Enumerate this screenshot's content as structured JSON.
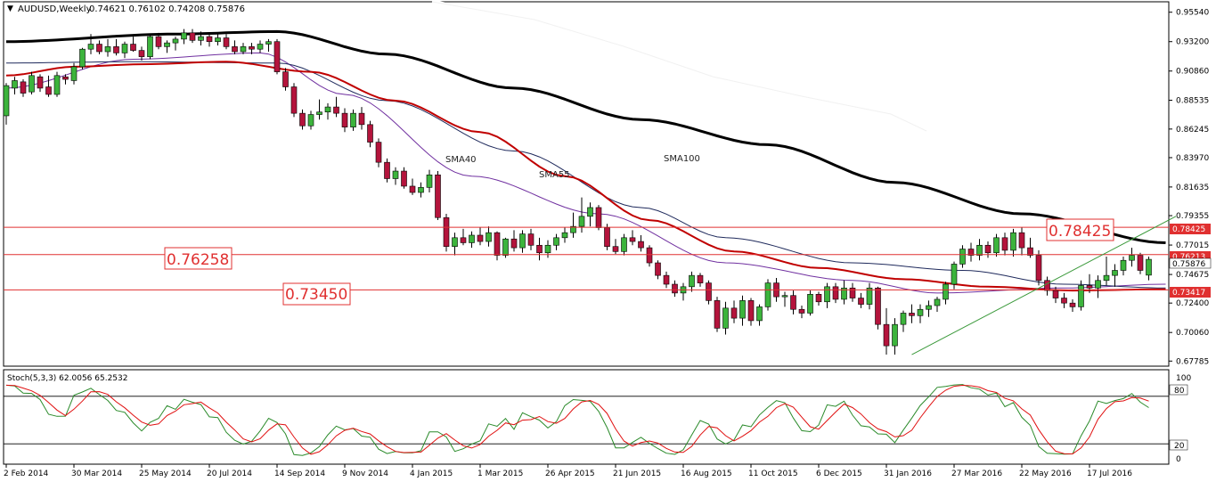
{
  "header": {
    "symbol_label": "AUDUSD,Weekly",
    "ohlc_label": "0.74621 0.76102 0.74208 0.75876"
  },
  "indicator": {
    "label": "Stoch(5,3,3) 62.0056 65.2532",
    "axis_ticks": [
      "100",
      "80",
      "20",
      "0"
    ]
  },
  "annotations": {
    "sma40": "SMA40",
    "sma55": "SMA55",
    "sma100": "SMA100",
    "level_1": "0.76258",
    "level_2": "0.73450",
    "level_3": "0.78425"
  },
  "price_axis": {
    "ticks": [
      "0.95540",
      "0.93200",
      "0.90860",
      "0.88535",
      "0.86245",
      "0.83970",
      "0.81635",
      "0.79355",
      "0.77015",
      "0.74675",
      "0.72400",
      "0.70060",
      "0.67785"
    ],
    "tag_1": "0.78425",
    "tag_2": "0.76213",
    "tag_3": "0.75876",
    "tag_4": "0.73417"
  },
  "time_axis": {
    "labels": [
      "2 Feb 2014",
      "30 Mar 2014",
      "25 May 2014",
      "20 Jul 2014",
      "14 Sep 2014",
      "9 Nov 2014",
      "4 Jan 2015",
      "1 Mar 2015",
      "26 Apr 2015",
      "21 Jun 2015",
      "16 Aug 2015",
      "11 Oct 2015",
      "6 Dec 2015",
      "31 Jan 2016",
      "27 Mar 2016",
      "22 May 2016",
      "17 Jul 2016"
    ]
  },
  "colors": {
    "background": "#ffffff",
    "bull_candle": "#3cb43c",
    "bear_candle": "#b4143c",
    "sma40": "#7030a0",
    "sma55": "#1f2a5c",
    "sma100_red": "#c00000",
    "sma_black": "#000000",
    "sma_white": "#ffffff",
    "level_line": "#e03030",
    "trendline": "#3c9a3c",
    "stoch_main": "#2a8a2a",
    "stoch_signal": "#e01010"
  },
  "chart_data": {
    "type": "candlestick",
    "title": "AUDUSD,Weekly",
    "ylim": [
      0.6738,
      0.9637
    ],
    "horizontal_levels": [
      0.78425,
      0.76258,
      0.7345
    ],
    "candles": [
      {
        "o": 0.873,
        "h": 0.899,
        "l": 0.866,
        "c": 0.897
      },
      {
        "o": 0.895,
        "h": 0.904,
        "l": 0.89,
        "c": 0.901
      },
      {
        "o": 0.9,
        "h": 0.902,
        "l": 0.888,
        "c": 0.891
      },
      {
        "o": 0.892,
        "h": 0.908,
        "l": 0.89,
        "c": 0.905
      },
      {
        "o": 0.904,
        "h": 0.906,
        "l": 0.892,
        "c": 0.895
      },
      {
        "o": 0.896,
        "h": 0.905,
        "l": 0.888,
        "c": 0.89
      },
      {
        "o": 0.89,
        "h": 0.908,
        "l": 0.888,
        "c": 0.905
      },
      {
        "o": 0.904,
        "h": 0.906,
        "l": 0.898,
        "c": 0.902
      },
      {
        "o": 0.901,
        "h": 0.915,
        "l": 0.898,
        "c": 0.912
      },
      {
        "o": 0.912,
        "h": 0.927,
        "l": 0.91,
        "c": 0.926
      },
      {
        "o": 0.926,
        "h": 0.938,
        "l": 0.922,
        "c": 0.93
      },
      {
        "o": 0.93,
        "h": 0.933,
        "l": 0.922,
        "c": 0.924
      },
      {
        "o": 0.924,
        "h": 0.934,
        "l": 0.92,
        "c": 0.928
      },
      {
        "o": 0.928,
        "h": 0.934,
        "l": 0.921,
        "c": 0.923
      },
      {
        "o": 0.923,
        "h": 0.932,
        "l": 0.919,
        "c": 0.93
      },
      {
        "o": 0.93,
        "h": 0.936,
        "l": 0.924,
        "c": 0.925
      },
      {
        "o": 0.925,
        "h": 0.928,
        "l": 0.917,
        "c": 0.92
      },
      {
        "o": 0.92,
        "h": 0.938,
        "l": 0.918,
        "c": 0.936
      },
      {
        "o": 0.936,
        "h": 0.939,
        "l": 0.926,
        "c": 0.928
      },
      {
        "o": 0.928,
        "h": 0.933,
        "l": 0.923,
        "c": 0.931
      },
      {
        "o": 0.931,
        "h": 0.936,
        "l": 0.925,
        "c": 0.934
      },
      {
        "o": 0.934,
        "h": 0.942,
        "l": 0.93,
        "c": 0.939
      },
      {
        "o": 0.939,
        "h": 0.942,
        "l": 0.931,
        "c": 0.933
      },
      {
        "o": 0.933,
        "h": 0.94,
        "l": 0.929,
        "c": 0.936
      },
      {
        "o": 0.936,
        "h": 0.938,
        "l": 0.928,
        "c": 0.932
      },
      {
        "o": 0.932,
        "h": 0.939,
        "l": 0.929,
        "c": 0.935
      },
      {
        "o": 0.935,
        "h": 0.938,
        "l": 0.926,
        "c": 0.928
      },
      {
        "o": 0.928,
        "h": 0.933,
        "l": 0.922,
        "c": 0.924
      },
      {
        "o": 0.924,
        "h": 0.931,
        "l": 0.922,
        "c": 0.928
      },
      {
        "o": 0.928,
        "h": 0.931,
        "l": 0.922,
        "c": 0.926
      },
      {
        "o": 0.926,
        "h": 0.933,
        "l": 0.923,
        "c": 0.93
      },
      {
        "o": 0.93,
        "h": 0.934,
        "l": 0.924,
        "c": 0.932
      },
      {
        "o": 0.932,
        "h": 0.934,
        "l": 0.906,
        "c": 0.908
      },
      {
        "o": 0.908,
        "h": 0.911,
        "l": 0.893,
        "c": 0.896
      },
      {
        "o": 0.896,
        "h": 0.899,
        "l": 0.872,
        "c": 0.875
      },
      {
        "o": 0.875,
        "h": 0.878,
        "l": 0.862,
        "c": 0.865
      },
      {
        "o": 0.865,
        "h": 0.877,
        "l": 0.862,
        "c": 0.874
      },
      {
        "o": 0.874,
        "h": 0.886,
        "l": 0.87,
        "c": 0.876
      },
      {
        "o": 0.876,
        "h": 0.883,
        "l": 0.87,
        "c": 0.88
      },
      {
        "o": 0.88,
        "h": 0.888,
        "l": 0.872,
        "c": 0.875
      },
      {
        "o": 0.875,
        "h": 0.879,
        "l": 0.86,
        "c": 0.864
      },
      {
        "o": 0.864,
        "h": 0.878,
        "l": 0.861,
        "c": 0.875
      },
      {
        "o": 0.875,
        "h": 0.88,
        "l": 0.862,
        "c": 0.866
      },
      {
        "o": 0.866,
        "h": 0.869,
        "l": 0.848,
        "c": 0.852
      },
      {
        "o": 0.852,
        "h": 0.855,
        "l": 0.832,
        "c": 0.836
      },
      {
        "o": 0.836,
        "h": 0.839,
        "l": 0.82,
        "c": 0.823
      },
      {
        "o": 0.823,
        "h": 0.832,
        "l": 0.818,
        "c": 0.829
      },
      {
        "o": 0.829,
        "h": 0.832,
        "l": 0.815,
        "c": 0.817
      },
      {
        "o": 0.817,
        "h": 0.823,
        "l": 0.81,
        "c": 0.812
      },
      {
        "o": 0.812,
        "h": 0.82,
        "l": 0.808,
        "c": 0.816
      },
      {
        "o": 0.816,
        "h": 0.83,
        "l": 0.812,
        "c": 0.826
      },
      {
        "o": 0.826,
        "h": 0.829,
        "l": 0.79,
        "c": 0.792
      },
      {
        "o": 0.792,
        "h": 0.795,
        "l": 0.765,
        "c": 0.769
      },
      {
        "o": 0.769,
        "h": 0.78,
        "l": 0.762,
        "c": 0.776
      },
      {
        "o": 0.776,
        "h": 0.783,
        "l": 0.77,
        "c": 0.772
      },
      {
        "o": 0.772,
        "h": 0.781,
        "l": 0.768,
        "c": 0.778
      },
      {
        "o": 0.778,
        "h": 0.784,
        "l": 0.77,
        "c": 0.773
      },
      {
        "o": 0.773,
        "h": 0.785,
        "l": 0.769,
        "c": 0.78
      },
      {
        "o": 0.78,
        "h": 0.781,
        "l": 0.758,
        "c": 0.762
      },
      {
        "o": 0.762,
        "h": 0.776,
        "l": 0.76,
        "c": 0.775
      },
      {
        "o": 0.775,
        "h": 0.782,
        "l": 0.765,
        "c": 0.768
      },
      {
        "o": 0.768,
        "h": 0.782,
        "l": 0.764,
        "c": 0.779
      },
      {
        "o": 0.779,
        "h": 0.783,
        "l": 0.766,
        "c": 0.77
      },
      {
        "o": 0.77,
        "h": 0.776,
        "l": 0.758,
        "c": 0.764
      },
      {
        "o": 0.764,
        "h": 0.774,
        "l": 0.76,
        "c": 0.77
      },
      {
        "o": 0.77,
        "h": 0.779,
        "l": 0.766,
        "c": 0.776
      },
      {
        "o": 0.776,
        "h": 0.784,
        "l": 0.772,
        "c": 0.78
      },
      {
        "o": 0.78,
        "h": 0.796,
        "l": 0.776,
        "c": 0.785
      },
      {
        "o": 0.785,
        "h": 0.808,
        "l": 0.78,
        "c": 0.793
      },
      {
        "o": 0.793,
        "h": 0.804,
        "l": 0.785,
        "c": 0.8
      },
      {
        "o": 0.8,
        "h": 0.802,
        "l": 0.782,
        "c": 0.784
      },
      {
        "o": 0.784,
        "h": 0.787,
        "l": 0.766,
        "c": 0.769
      },
      {
        "o": 0.769,
        "h": 0.775,
        "l": 0.763,
        "c": 0.765
      },
      {
        "o": 0.765,
        "h": 0.779,
        "l": 0.762,
        "c": 0.776
      },
      {
        "o": 0.776,
        "h": 0.782,
        "l": 0.77,
        "c": 0.773
      },
      {
        "o": 0.773,
        "h": 0.778,
        "l": 0.765,
        "c": 0.768
      },
      {
        "o": 0.768,
        "h": 0.77,
        "l": 0.753,
        "c": 0.756
      },
      {
        "o": 0.756,
        "h": 0.758,
        "l": 0.743,
        "c": 0.746
      },
      {
        "o": 0.746,
        "h": 0.749,
        "l": 0.736,
        "c": 0.739
      },
      {
        "o": 0.739,
        "h": 0.742,
        "l": 0.729,
        "c": 0.732
      },
      {
        "o": 0.732,
        "h": 0.74,
        "l": 0.726,
        "c": 0.737
      },
      {
        "o": 0.737,
        "h": 0.749,
        "l": 0.733,
        "c": 0.746
      },
      {
        "o": 0.746,
        "h": 0.748,
        "l": 0.737,
        "c": 0.74
      },
      {
        "o": 0.74,
        "h": 0.742,
        "l": 0.723,
        "c": 0.726
      },
      {
        "o": 0.726,
        "h": 0.729,
        "l": 0.701,
        "c": 0.704
      },
      {
        "o": 0.704,
        "h": 0.725,
        "l": 0.699,
        "c": 0.72
      },
      {
        "o": 0.72,
        "h": 0.726,
        "l": 0.708,
        "c": 0.712
      },
      {
        "o": 0.712,
        "h": 0.73,
        "l": 0.706,
        "c": 0.726
      },
      {
        "o": 0.726,
        "h": 0.728,
        "l": 0.706,
        "c": 0.71
      },
      {
        "o": 0.71,
        "h": 0.723,
        "l": 0.706,
        "c": 0.721
      },
      {
        "o": 0.721,
        "h": 0.743,
        "l": 0.718,
        "c": 0.74
      },
      {
        "o": 0.74,
        "h": 0.744,
        "l": 0.725,
        "c": 0.729
      },
      {
        "o": 0.729,
        "h": 0.733,
        "l": 0.721,
        "c": 0.73
      },
      {
        "o": 0.73,
        "h": 0.734,
        "l": 0.715,
        "c": 0.719
      },
      {
        "o": 0.719,
        "h": 0.722,
        "l": 0.712,
        "c": 0.716
      },
      {
        "o": 0.716,
        "h": 0.734,
        "l": 0.714,
        "c": 0.731
      },
      {
        "o": 0.731,
        "h": 0.733,
        "l": 0.722,
        "c": 0.725
      },
      {
        "o": 0.725,
        "h": 0.74,
        "l": 0.72,
        "c": 0.737
      },
      {
        "o": 0.737,
        "h": 0.74,
        "l": 0.724,
        "c": 0.727
      },
      {
        "o": 0.727,
        "h": 0.742,
        "l": 0.723,
        "c": 0.736
      },
      {
        "o": 0.736,
        "h": 0.74,
        "l": 0.725,
        "c": 0.728
      },
      {
        "o": 0.728,
        "h": 0.732,
        "l": 0.72,
        "c": 0.723
      },
      {
        "o": 0.723,
        "h": 0.74,
        "l": 0.719,
        "c": 0.736
      },
      {
        "o": 0.736,
        "h": 0.737,
        "l": 0.703,
        "c": 0.707
      },
      {
        "o": 0.707,
        "h": 0.72,
        "l": 0.683,
        "c": 0.69
      },
      {
        "o": 0.69,
        "h": 0.712,
        "l": 0.683,
        "c": 0.707
      },
      {
        "o": 0.707,
        "h": 0.718,
        "l": 0.701,
        "c": 0.716
      },
      {
        "o": 0.716,
        "h": 0.723,
        "l": 0.708,
        "c": 0.714
      },
      {
        "o": 0.714,
        "h": 0.723,
        "l": 0.708,
        "c": 0.719
      },
      {
        "o": 0.719,
        "h": 0.726,
        "l": 0.713,
        "c": 0.722
      },
      {
        "o": 0.722,
        "h": 0.729,
        "l": 0.717,
        "c": 0.727
      },
      {
        "o": 0.727,
        "h": 0.741,
        "l": 0.723,
        "c": 0.739
      },
      {
        "o": 0.739,
        "h": 0.757,
        "l": 0.735,
        "c": 0.755
      },
      {
        "o": 0.755,
        "h": 0.77,
        "l": 0.752,
        "c": 0.767
      },
      {
        "o": 0.767,
        "h": 0.772,
        "l": 0.757,
        "c": 0.762
      },
      {
        "o": 0.762,
        "h": 0.775,
        "l": 0.758,
        "c": 0.77
      },
      {
        "o": 0.77,
        "h": 0.773,
        "l": 0.76,
        "c": 0.764
      },
      {
        "o": 0.764,
        "h": 0.779,
        "l": 0.761,
        "c": 0.776
      },
      {
        "o": 0.776,
        "h": 0.78,
        "l": 0.762,
        "c": 0.766
      },
      {
        "o": 0.766,
        "h": 0.783,
        "l": 0.761,
        "c": 0.78
      },
      {
        "o": 0.78,
        "h": 0.784,
        "l": 0.762,
        "c": 0.768
      },
      {
        "o": 0.768,
        "h": 0.776,
        "l": 0.76,
        "c": 0.762
      },
      {
        "o": 0.762,
        "h": 0.766,
        "l": 0.738,
        "c": 0.742
      },
      {
        "o": 0.742,
        "h": 0.745,
        "l": 0.73,
        "c": 0.734
      },
      {
        "o": 0.734,
        "h": 0.737,
        "l": 0.724,
        "c": 0.728
      },
      {
        "o": 0.728,
        "h": 0.732,
        "l": 0.72,
        "c": 0.724
      },
      {
        "o": 0.724,
        "h": 0.727,
        "l": 0.717,
        "c": 0.721
      },
      {
        "o": 0.721,
        "h": 0.742,
        "l": 0.718,
        "c": 0.738
      },
      {
        "o": 0.738,
        "h": 0.747,
        "l": 0.732,
        "c": 0.736
      },
      {
        "o": 0.736,
        "h": 0.746,
        "l": 0.728,
        "c": 0.742
      },
      {
        "o": 0.742,
        "h": 0.761,
        "l": 0.738,
        "c": 0.746
      },
      {
        "o": 0.746,
        "h": 0.755,
        "l": 0.737,
        "c": 0.75
      },
      {
        "o": 0.75,
        "h": 0.761,
        "l": 0.746,
        "c": 0.758
      },
      {
        "o": 0.758,
        "h": 0.768,
        "l": 0.753,
        "c": 0.762
      },
      {
        "o": 0.762,
        "h": 0.764,
        "l": 0.747,
        "c": 0.75
      },
      {
        "o": 0.7462,
        "h": 0.761,
        "l": 0.7421,
        "c": 0.7588
      }
    ],
    "series": [
      {
        "name": "SMA40",
        "values": [
          [
            0,
            0.895
          ],
          [
            15,
            0.918
          ],
          [
            30,
            0.923
          ],
          [
            40,
            0.89
          ],
          [
            55,
            0.825
          ],
          [
            70,
            0.795
          ],
          [
            85,
            0.756
          ],
          [
            100,
            0.742
          ],
          [
            110,
            0.732
          ],
          [
            125,
            0.736
          ],
          [
            137,
            0.739
          ]
        ]
      },
      {
        "name": "SMA55",
        "values": [
          [
            0,
            0.915
          ],
          [
            15,
            0.916
          ],
          [
            32,
            0.915
          ],
          [
            45,
            0.885
          ],
          [
            60,
            0.845
          ],
          [
            75,
            0.8
          ],
          [
            85,
            0.776
          ],
          [
            100,
            0.756
          ],
          [
            113,
            0.75
          ],
          [
            125,
            0.739
          ],
          [
            137,
            0.736
          ]
        ]
      },
      {
        "name": "SMA100",
        "values": [
          [
            0,
            0.932
          ],
          [
            20,
            0.938
          ],
          [
            32,
            0.94
          ],
          [
            45,
            0.922
          ],
          [
            60,
            0.895
          ],
          [
            75,
            0.87
          ],
          [
            90,
            0.85
          ],
          [
            105,
            0.82
          ],
          [
            120,
            0.795
          ],
          [
            137,
            0.772
          ]
        ]
      }
    ]
  }
}
